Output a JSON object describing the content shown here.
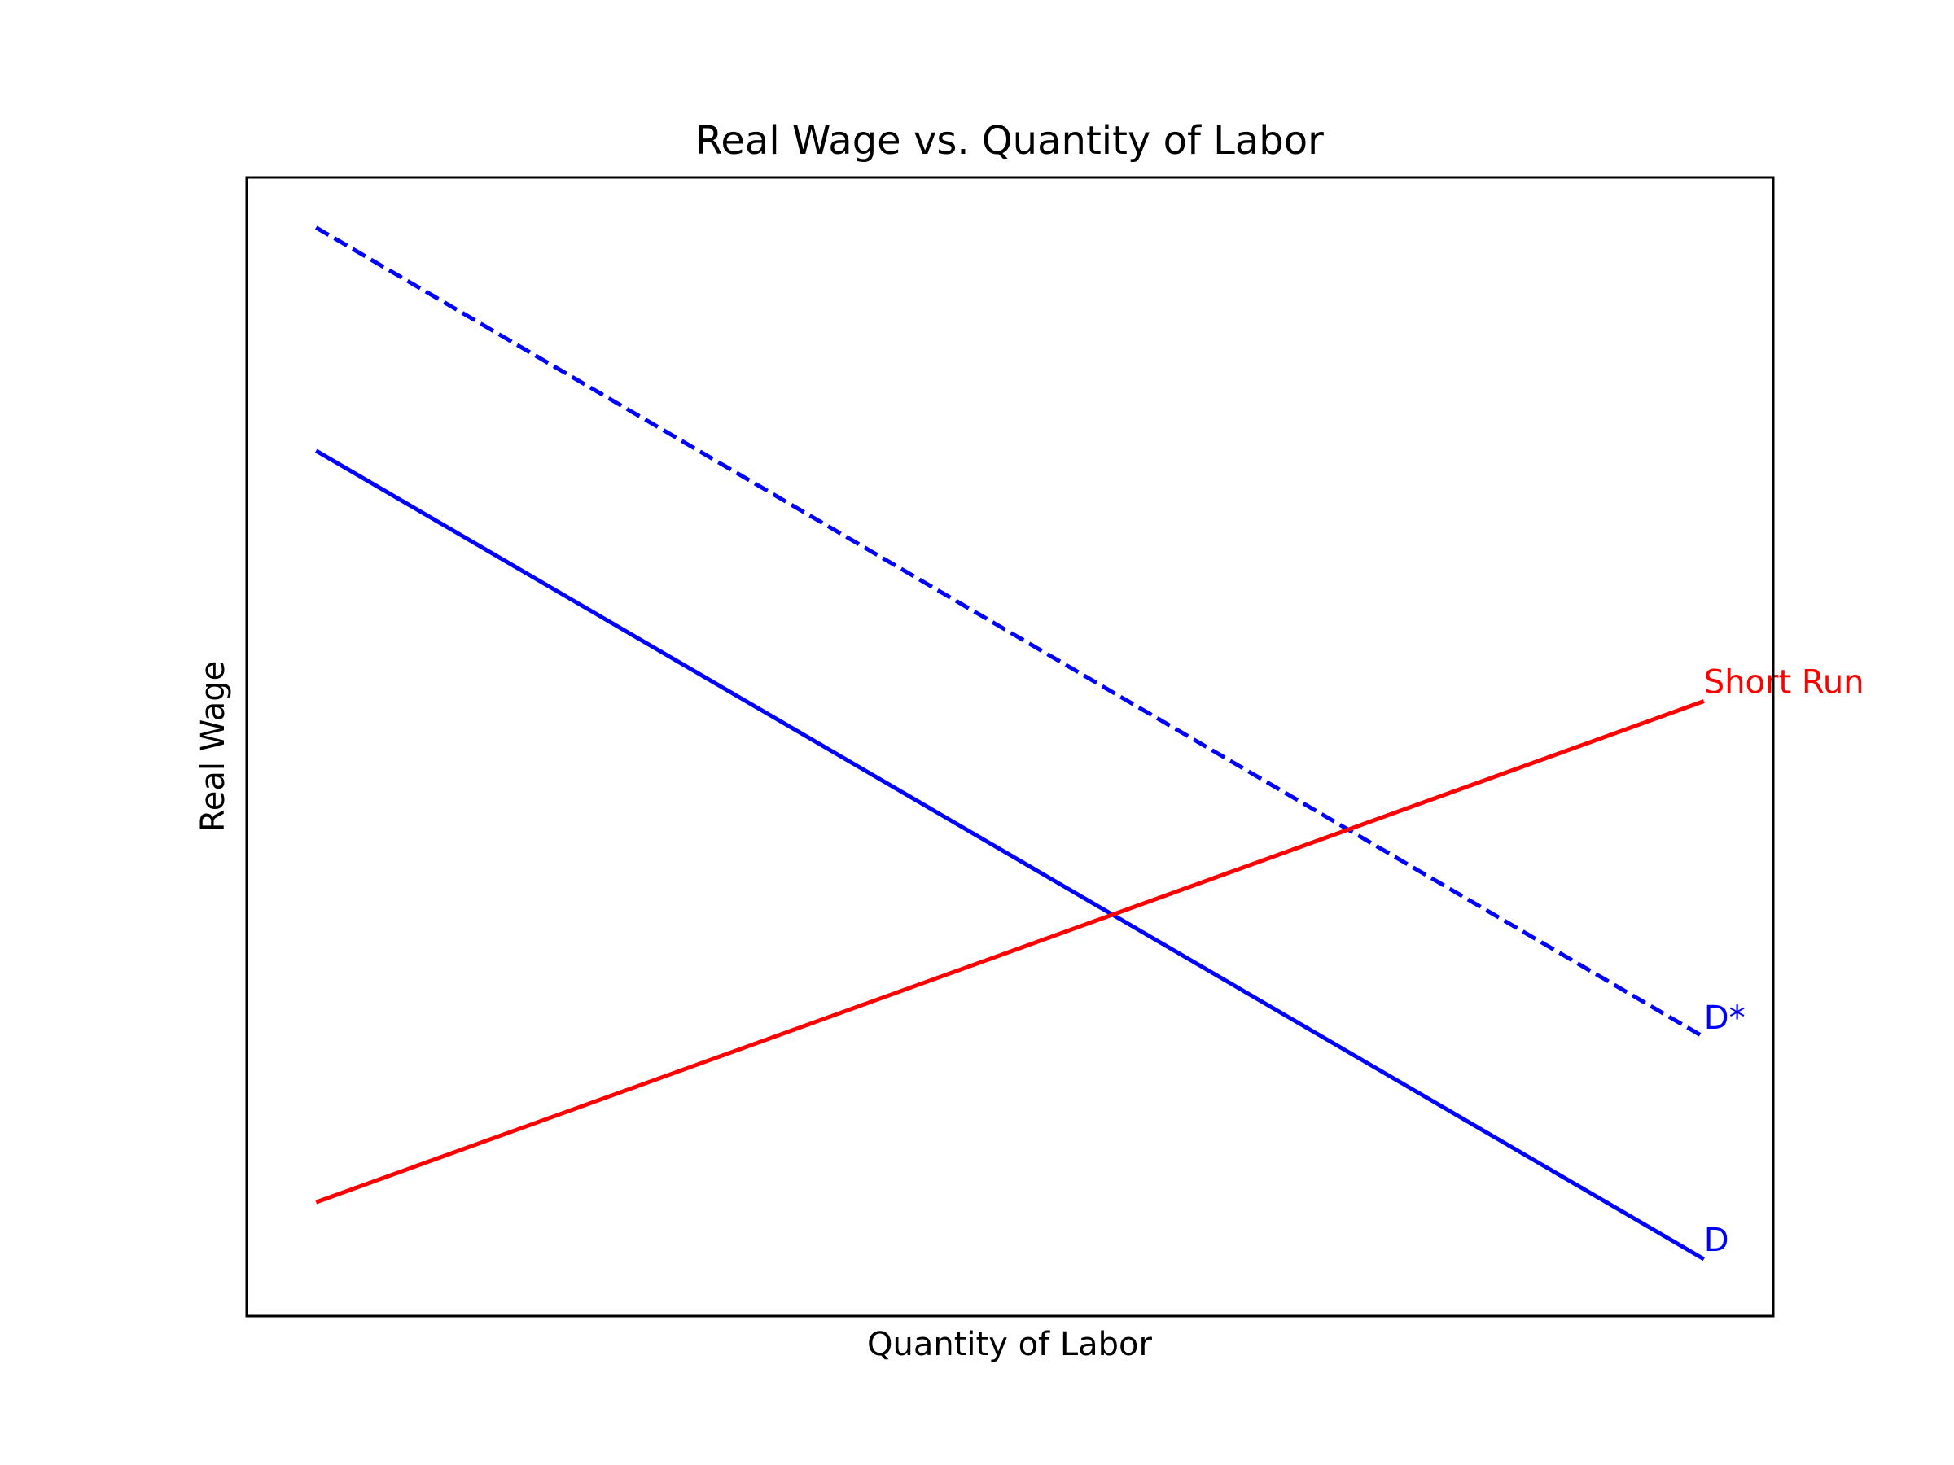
{
  "chart_data": {
    "type": "line",
    "title": "Real Wage vs. Quantity of Labor",
    "xlabel": "Quantity of Labor",
    "ylabel": "Real Wage",
    "xlim": [
      0,
      11
    ],
    "ylim": [
      0,
      10
    ],
    "grid": false,
    "ticks_visible": false,
    "series": [
      {
        "name": "D",
        "color": "#0000ff",
        "style": "solid",
        "x": [
          0.5,
          10.5
        ],
        "y": [
          7.6,
          0.5
        ]
      },
      {
        "name": "D*",
        "color": "#0000ff",
        "style": "dashed",
        "x": [
          0.5,
          10.5
        ],
        "y": [
          9.56,
          2.45
        ]
      },
      {
        "name": "Short Run",
        "color": "#ff0000",
        "style": "solid",
        "x": [
          0.5,
          10.5
        ],
        "y": [
          1.0,
          5.4
        ]
      }
    ]
  }
}
